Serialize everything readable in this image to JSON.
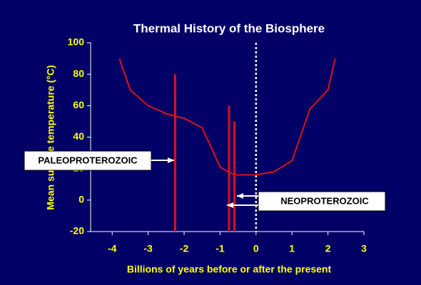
{
  "chart_data": {
    "type": "line",
    "title": "Thermal History of the Biosphere",
    "x_label": "Billions of years before or after the present",
    "y_label": "Mean surface temperature (°C)",
    "background": "#000066",
    "xlim": [
      -4.6,
      3
    ],
    "xticks": [
      -4,
      -3,
      -2,
      -1,
      0,
      1,
      2,
      3
    ],
    "ylim": [
      -20,
      100
    ],
    "yticks": [
      -20,
      0,
      20,
      40,
      60,
      80,
      100
    ],
    "series": [
      {
        "name": "Mean surface temperature",
        "color": "#dd1111",
        "x": [
          -3.8,
          -3.5,
          -3,
          -2.5,
          -2.2,
          -2,
          -1.5,
          -1,
          -0.7,
          -0.5,
          0,
          0.5,
          1,
          1.5,
          2,
          2.2
        ],
        "values": [
          90,
          70,
          60,
          55,
          53,
          52,
          46,
          21,
          17,
          16,
          16,
          18,
          25,
          58,
          70,
          90
        ]
      }
    ],
    "spikes": [
      {
        "x": -2.25,
        "low": -20,
        "high": 80
      },
      {
        "x": -0.75,
        "low": -20,
        "high": 60
      },
      {
        "x": -0.6,
        "low": -20,
        "high": 50
      }
    ],
    "present_line": 0,
    "annotations": [
      "PALEOPROTEROZOIC",
      "NEOPROTEROZOIC"
    ]
  }
}
